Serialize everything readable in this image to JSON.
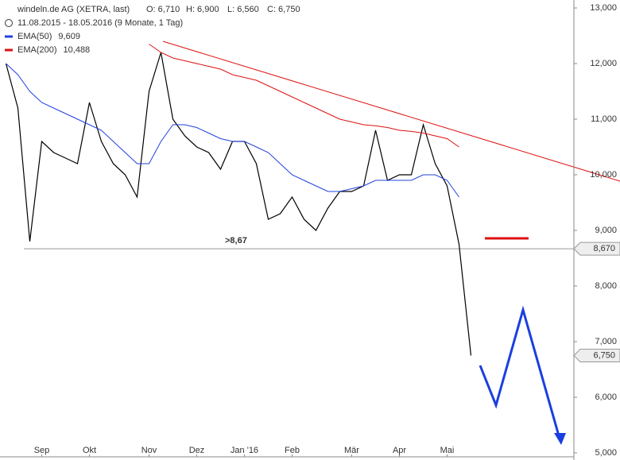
{
  "chart_data": {
    "type": "line",
    "title": "windeln.de AG (XETRA, last)",
    "ohlc": [
      "O: 6,710",
      "H: 6,900",
      "L: 6,560",
      "C: 6,750"
    ],
    "subtitle": "11.08.2015 - 18.05.2016 (9 Monate, 1 Tag)",
    "categories": [
      null,
      null,
      null,
      "Sep",
      null,
      null,
      null,
      "Okt",
      null,
      null,
      null,
      null,
      "Nov",
      null,
      null,
      null,
      "Dez",
      null,
      null,
      null,
      "Jan '16",
      null,
      null,
      null,
      "Feb",
      null,
      null,
      null,
      null,
      "Mär",
      null,
      null,
      null,
      "Apr",
      null,
      null,
      null,
      "Mai",
      null,
      null
    ],
    "price": {
      "color": "#000000",
      "values": [
        12.0,
        11.2,
        8.8,
        10.6,
        10.4,
        10.3,
        10.2,
        11.3,
        10.6,
        10.2,
        10.0,
        9.6,
        11.5,
        12.2,
        11.0,
        10.7,
        10.5,
        10.4,
        10.1,
        10.6,
        10.6,
        10.2,
        9.2,
        9.3,
        9.6,
        9.2,
        9.0,
        9.4,
        9.7,
        9.7,
        9.8,
        10.8,
        9.9,
        10.0,
        10.0,
        10.9,
        10.2,
        9.8,
        8.75,
        6.75
      ]
    },
    "series": [
      {
        "name": "EMA(50)",
        "color": "#2040e0",
        "legend_value": "9,609",
        "values": [
          12.0,
          11.8,
          11.5,
          11.3,
          11.2,
          11.1,
          11.0,
          10.9,
          10.8,
          10.6,
          10.4,
          10.2,
          10.2,
          10.6,
          10.9,
          10.9,
          10.85,
          10.75,
          10.65,
          10.6,
          10.6,
          10.5,
          10.4,
          10.2,
          10.0,
          9.9,
          9.8,
          9.7,
          9.7,
          9.75,
          9.8,
          9.9,
          9.9,
          9.9,
          9.9,
          10.0,
          10.0,
          9.9,
          9.6,
          null
        ]
      },
      {
        "name": "EMA(200)",
        "color": "#dd1111",
        "legend_value": "10,488",
        "values": [
          null,
          null,
          null,
          null,
          null,
          null,
          null,
          null,
          null,
          null,
          null,
          null,
          12.35,
          12.2,
          12.1,
          12.05,
          12.0,
          11.95,
          11.9,
          11.8,
          11.75,
          11.7,
          11.6,
          11.5,
          11.4,
          11.3,
          11.2,
          11.1,
          11.0,
          10.95,
          10.9,
          10.88,
          10.85,
          10.8,
          10.78,
          10.75,
          10.7,
          10.65,
          10.5,
          null
        ]
      }
    ],
    "support": {
      "value": 8.67,
      "label": ">8,67"
    },
    "price_labels": [
      {
        "value": 8.67,
        "label": "8,670"
      },
      {
        "value": 6.75,
        "label": "6,750"
      }
    ],
    "ylim": [
      5,
      13.1
    ],
    "yticks": [
      {
        "value": 5,
        "label": "5,000"
      },
      {
        "value": 6,
        "label": "6,000"
      },
      {
        "value": 7,
        "label": "7,000"
      },
      {
        "value": 8,
        "label": "8,000"
      },
      {
        "value": 9,
        "label": "9,000"
      },
      {
        "value": 10,
        "label": "10,000"
      },
      {
        "value": 11,
        "label": "11,000"
      },
      {
        "value": 12,
        "label": "12,000"
      },
      {
        "value": 13,
        "label": "13,000"
      }
    ]
  }
}
